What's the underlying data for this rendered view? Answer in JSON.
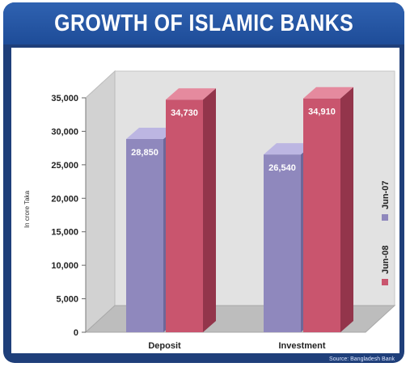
{
  "header": {
    "title": "GROWTH OF ISLAMIC BANKS"
  },
  "footer": {
    "source": "Source: Bangladesh Bank"
  },
  "colors": {
    "frame": "#1f3f7a",
    "title_bar": "#2f62b1",
    "jun07_front": "#8f88bd",
    "jun07_top": "#bcb6e2",
    "jun07_side": "#6d6799",
    "jun08_front": "#c9556e",
    "jun08_top": "#e58a9e",
    "jun08_side": "#93354b",
    "wall": "#e2e2e2",
    "floor": "#bdbdbd"
  },
  "chart_data": {
    "type": "bar",
    "title": "GROWTH OF ISLAMIC BANKS",
    "ylabel": "In crore Taka",
    "xlabel": "",
    "ylim": [
      0,
      35000
    ],
    "y_ticks": [
      "0",
      "5,000",
      "10,000",
      "15,000",
      "20,000",
      "25,000",
      "30,000",
      "35,000"
    ],
    "categories": [
      "Deposit",
      "Investment"
    ],
    "series": [
      {
        "name": "Jun-07",
        "values": [
          28850,
          26540
        ],
        "labels": [
          "28,850",
          "26,540"
        ]
      },
      {
        "name": "Jun-08",
        "values": [
          34730,
          34910
        ],
        "labels": [
          "34,730",
          "34,910"
        ]
      }
    ],
    "legend_position": "right",
    "grid": false,
    "style": "3d"
  }
}
